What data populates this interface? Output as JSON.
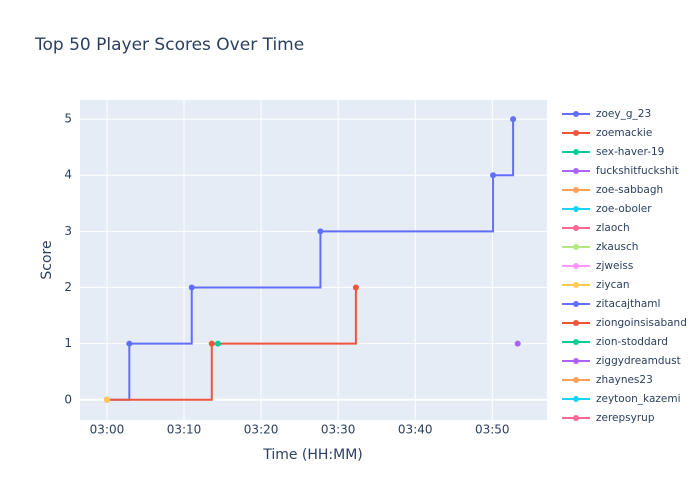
{
  "chart_data": {
    "type": "line",
    "line_shape": "hv",
    "title": "Top 50 Player Scores Over Time",
    "x_label": "Time (HH:MM)",
    "y_label": "Score",
    "xlim": [
      -3.5,
      57.1
    ],
    "ylim": [
      -0.36,
      5.34
    ],
    "xticks": [
      {
        "value": 0,
        "label": "03:00"
      },
      {
        "value": 10,
        "label": "03:10"
      },
      {
        "value": 20,
        "label": "03:20"
      },
      {
        "value": 30,
        "label": "03:30"
      },
      {
        "value": 40,
        "label": "03:40"
      },
      {
        "value": 50,
        "label": "03:50"
      }
    ],
    "yticks": [
      0,
      1,
      2,
      3,
      4,
      5
    ],
    "grid": true,
    "series": [
      {
        "name": "zoey_g_23",
        "color": "#636efa",
        "x": [
          0,
          2.9,
          11.0,
          27.7,
          50.1,
          52.7
        ],
        "values": [
          0,
          1,
          2,
          3,
          4,
          5
        ]
      },
      {
        "name": "zoemackie",
        "color": "#EF553B",
        "x": [
          0,
          13.6,
          32.3
        ],
        "values": [
          0,
          1,
          2
        ]
      },
      {
        "name": "sex-haver-19",
        "color": "#00cc96",
        "x": [
          14.4
        ],
        "values": [
          1
        ]
      },
      {
        "name": "fuckshitfuckshit",
        "color": "#ab63fa",
        "x": [
          53.3
        ],
        "values": [
          1
        ]
      },
      {
        "name": "zoe-sabbagh",
        "color": "#FFA15A",
        "x": [
          0
        ],
        "values": [
          0
        ]
      },
      {
        "name": "zoe-oboler",
        "color": "#19d3f3",
        "x": [
          0
        ],
        "values": [
          0
        ]
      },
      {
        "name": "zlaoch",
        "color": "#FF6692",
        "x": [
          0
        ],
        "values": [
          0
        ]
      },
      {
        "name": "zkausch",
        "color": "#B6E880",
        "x": [
          0
        ],
        "values": [
          0
        ]
      },
      {
        "name": "zjweiss",
        "color": "#FF97FF",
        "x": [
          0
        ],
        "values": [
          0
        ]
      },
      {
        "name": "ziycan",
        "color": "#FECB52",
        "x": [
          0
        ],
        "values": [
          0
        ]
      },
      {
        "name": "zitacajthaml",
        "color": "#636efa",
        "x": [],
        "values": []
      },
      {
        "name": "ziongoinsisaband",
        "color": "#EF553B",
        "x": [],
        "values": []
      },
      {
        "name": "zion-stoddard",
        "color": "#00cc96",
        "x": [],
        "values": []
      },
      {
        "name": "ziggydreamdust",
        "color": "#ab63fa",
        "x": [],
        "values": []
      },
      {
        "name": "zhaynes23",
        "color": "#FFA15A",
        "x": [],
        "values": []
      },
      {
        "name": "zeytoon_kazemi",
        "color": "#19d3f3",
        "x": [],
        "values": []
      },
      {
        "name": "zerepsyrup",
        "color": "#FF6692",
        "x": [],
        "values": []
      }
    ]
  }
}
